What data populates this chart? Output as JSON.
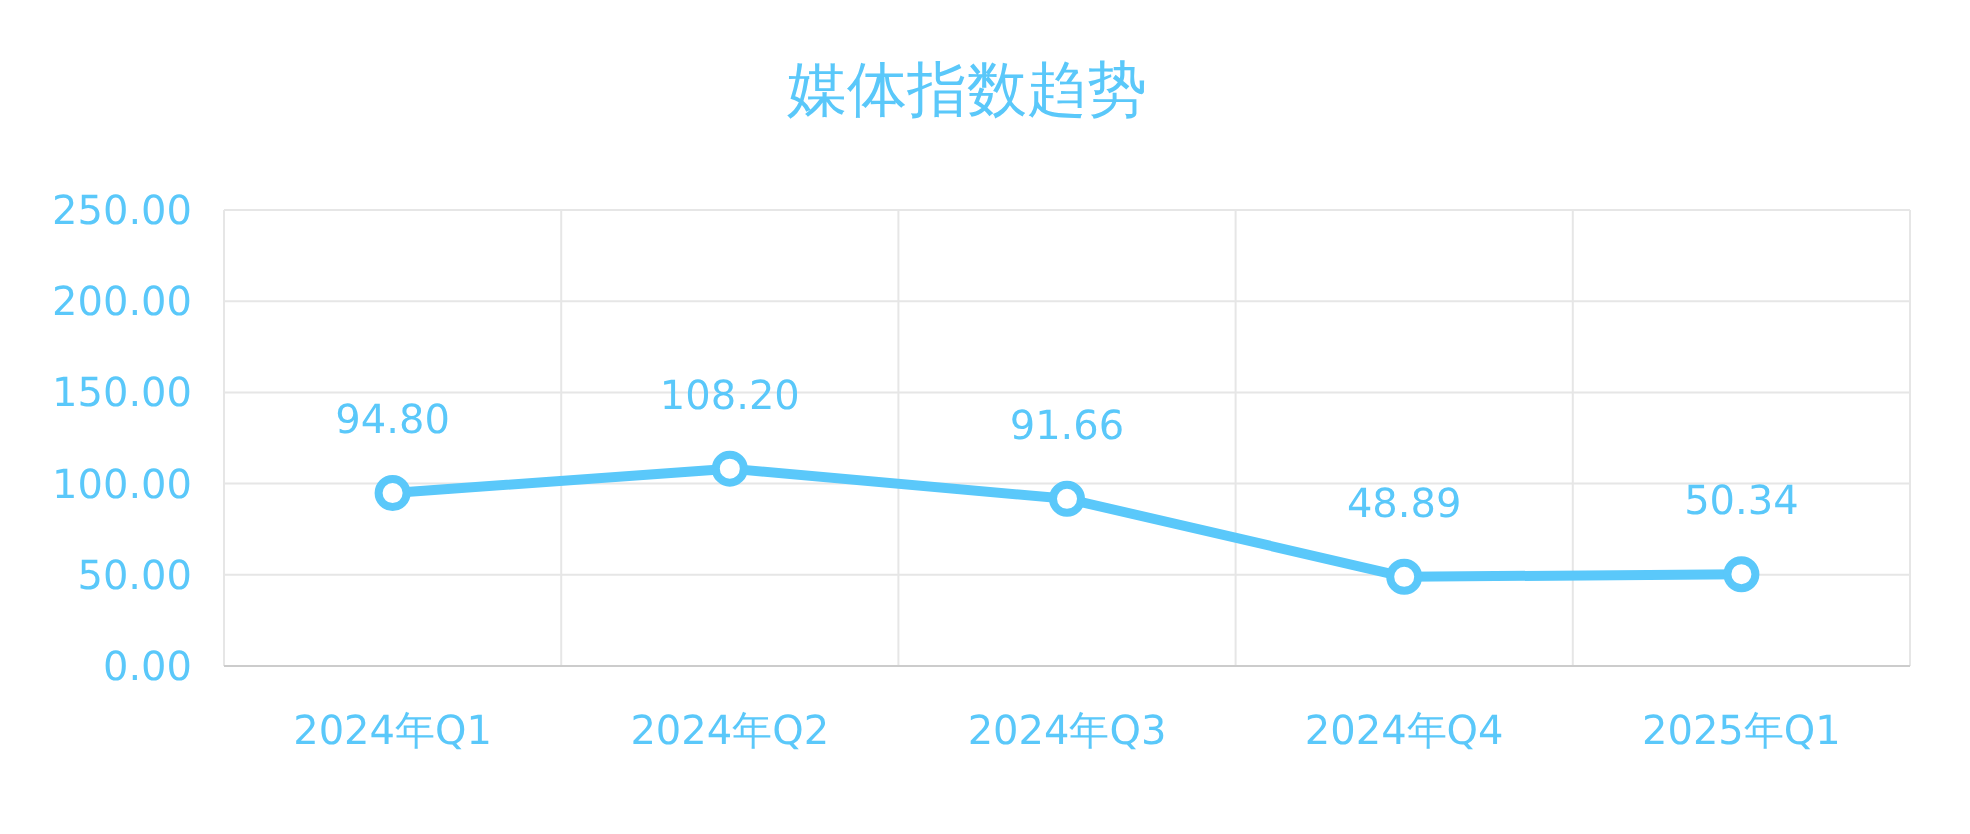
{
  "chart_data": {
    "type": "line",
    "title": "媒体指数趋势",
    "categories": [
      "2024年Q1",
      "2024年Q2",
      "2024年Q3",
      "2024年Q4",
      "2025年Q1"
    ],
    "series": [
      {
        "color": "#5ac8fa",
        "values": [
          94.8,
          108.2,
          91.66,
          48.89,
          50.34
        ],
        "value_labels": [
          "94.80",
          "108.20",
          "91.66",
          "48.89",
          "50.34"
        ]
      }
    ],
    "ylim": [
      0,
      250
    ],
    "yticks": [
      {
        "value": 0,
        "label": "0.00"
      },
      {
        "value": 50,
        "label": "50.00"
      },
      {
        "value": 100,
        "label": "100.00"
      },
      {
        "value": 150,
        "label": "150.00"
      },
      {
        "value": 200,
        "label": "200.00"
      },
      {
        "value": 250,
        "label": "250.00"
      }
    ],
    "grid": true,
    "marker": "circle",
    "line_style": "solid"
  }
}
